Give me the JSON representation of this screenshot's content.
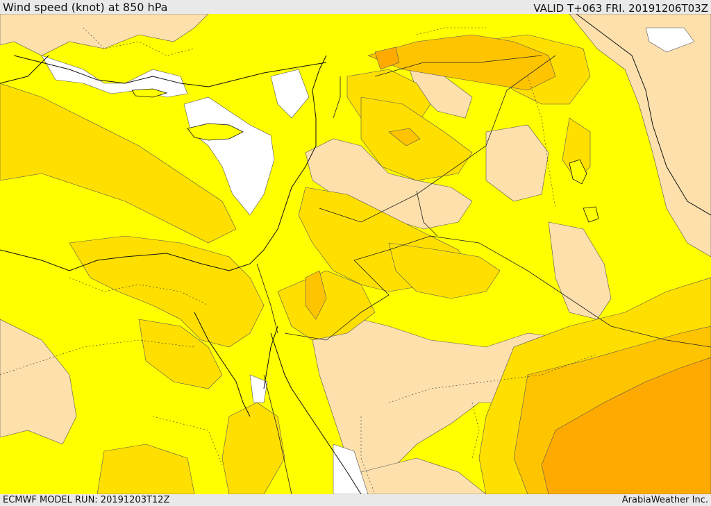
{
  "header": {
    "title": "Wind speed (knot) at 850 hPa",
    "valid": "VALID T+063 FRI. 20191206T03Z"
  },
  "footer": {
    "model_run": "ECMWF MODEL RUN: 20191203T12Z",
    "credit": "ArabiaWeather Inc."
  },
  "colors": {
    "bin_white": "#ffffff",
    "bin_light_tan": "#fde0ac",
    "bin_yellow": "#ffff00",
    "bin_gold": "#ffdf00",
    "bin_orange_light": "#ffc400",
    "bin_orange": "#ffaa00",
    "coastline": "#111111",
    "border": "#222222"
  }
}
